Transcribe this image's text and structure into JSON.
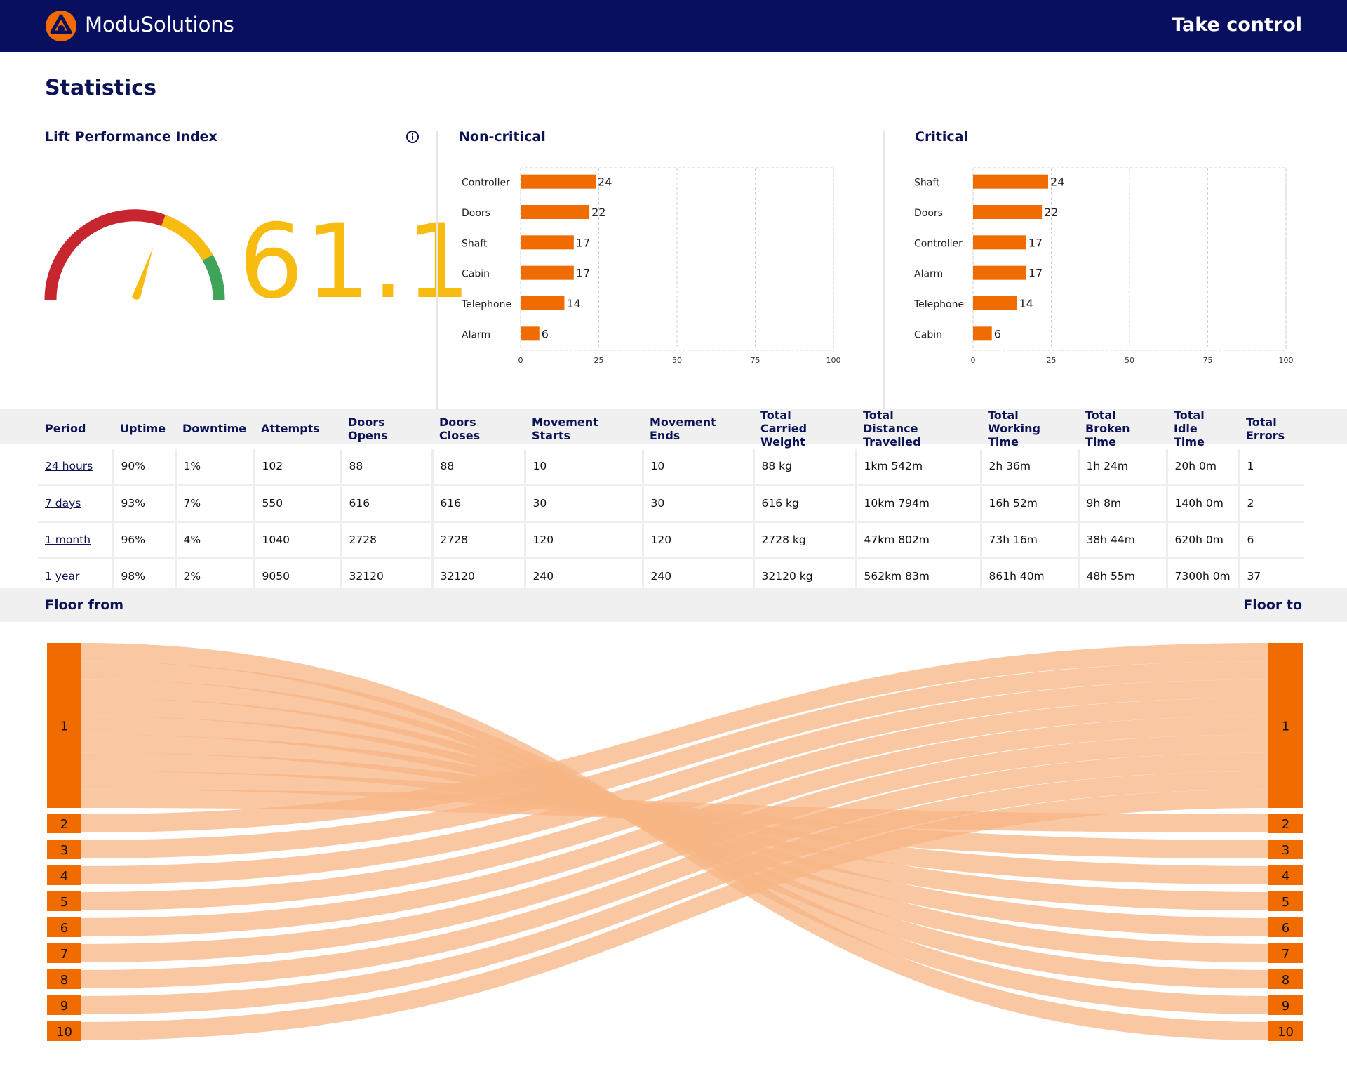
{
  "header": {
    "brand": "ModuSolutions",
    "cta": "Take control",
    "logo_icon": "modusolutions-logo-icon",
    "background": "#070f5e"
  },
  "page": {
    "title": "Statistics"
  },
  "lpi": {
    "title": "Lift Performance Index",
    "value": "61.1",
    "value_color": "#f8bb0f",
    "info_icon": "info-icon",
    "gauge_colors": {
      "low": "#c8262e",
      "mid": "#f8bb0f",
      "high": "#3fa35a"
    }
  },
  "non_critical": {
    "title": "Non-critical"
  },
  "critical": {
    "title": "Critical"
  },
  "chart_data": [
    {
      "type": "bar",
      "orientation": "horizontal",
      "title": "Non-critical",
      "categories": [
        "Controller",
        "Doors",
        "Shaft",
        "Cabin",
        "Telephone",
        "Alarm"
      ],
      "values": [
        24,
        22,
        17,
        17,
        14,
        6
      ],
      "xlim": [
        0,
        100
      ],
      "xticks": [
        0,
        25,
        50,
        75,
        100
      ],
      "grid": true,
      "color": "#f06c00"
    },
    {
      "type": "bar",
      "orientation": "horizontal",
      "title": "Critical",
      "categories": [
        "Shaft",
        "Doors",
        "Controller",
        "Alarm",
        "Telephone",
        "Cabin"
      ],
      "values": [
        24,
        22,
        17,
        17,
        14,
        6
      ],
      "xlim": [
        0,
        100
      ],
      "xticks": [
        0,
        25,
        50,
        75,
        100
      ],
      "grid": true,
      "color": "#f06c00"
    },
    {
      "type": "sankey",
      "left_label": "Floor from",
      "right_label": "Floor to",
      "nodes": [
        "1",
        "2",
        "3",
        "4",
        "5",
        "6",
        "7",
        "8",
        "9",
        "10"
      ],
      "node_color": "#f06c00",
      "link_color": "#f7b584",
      "links": [
        {
          "from": "1",
          "to": "10",
          "value": 1
        },
        {
          "from": "1",
          "to": "9",
          "value": 1
        },
        {
          "from": "1",
          "to": "8",
          "value": 1
        },
        {
          "from": "1",
          "to": "7",
          "value": 1
        },
        {
          "from": "1",
          "to": "6",
          "value": 1
        },
        {
          "from": "1",
          "to": "5",
          "value": 1
        },
        {
          "from": "1",
          "to": "4",
          "value": 1
        },
        {
          "from": "1",
          "to": "3",
          "value": 1
        },
        {
          "from": "1",
          "to": "2",
          "value": 1
        },
        {
          "from": "2",
          "to": "1",
          "value": 1
        },
        {
          "from": "3",
          "to": "1",
          "value": 1
        },
        {
          "from": "4",
          "to": "1",
          "value": 1
        },
        {
          "from": "5",
          "to": "1",
          "value": 1
        },
        {
          "from": "6",
          "to": "1",
          "value": 1
        },
        {
          "from": "7",
          "to": "1",
          "value": 1
        },
        {
          "from": "8",
          "to": "1",
          "value": 1
        },
        {
          "from": "9",
          "to": "1",
          "value": 1
        },
        {
          "from": "10",
          "to": "1",
          "value": 1
        }
      ]
    }
  ],
  "table": {
    "columns": [
      "Period",
      "Uptime",
      "Downtime",
      "Attempts",
      "Doors Opens",
      "Doors Closes",
      "Movement Starts",
      "Movement Ends",
      "Total\nCarried Weight",
      "Total\nDistance Travelled",
      "Total\nWorking Time",
      "Total\nBroken Time",
      "Total\nIdle Time",
      "Total Errors"
    ],
    "rows": [
      [
        "24 hours",
        "90%",
        "1%",
        "102",
        "88",
        "88",
        "10",
        "10",
        "88 kg",
        "1km 542m",
        "2h 36m",
        "1h 24m",
        "20h 0m",
        "1"
      ],
      [
        "7 days",
        "93%",
        "7%",
        "550",
        "616",
        "616",
        "30",
        "30",
        "616 kg",
        "10km 794m",
        "16h 52m",
        "9h 8m",
        "140h 0m",
        "2"
      ],
      [
        "1 month",
        "96%",
        "4%",
        "1040",
        "2728",
        "2728",
        "120",
        "120",
        "2728 kg",
        "47km 802m",
        "73h 16m",
        "38h 44m",
        "620h 0m",
        "6"
      ],
      [
        "1 year",
        "98%",
        "2%",
        "9050",
        "32120",
        "32120",
        "240",
        "240",
        "32120 kg",
        "562km 83m",
        "861h 40m",
        "48h 55m",
        "7300h 0m",
        "37"
      ]
    ]
  },
  "sankey": {
    "left_label": "Floor from",
    "right_label": "Floor to"
  }
}
